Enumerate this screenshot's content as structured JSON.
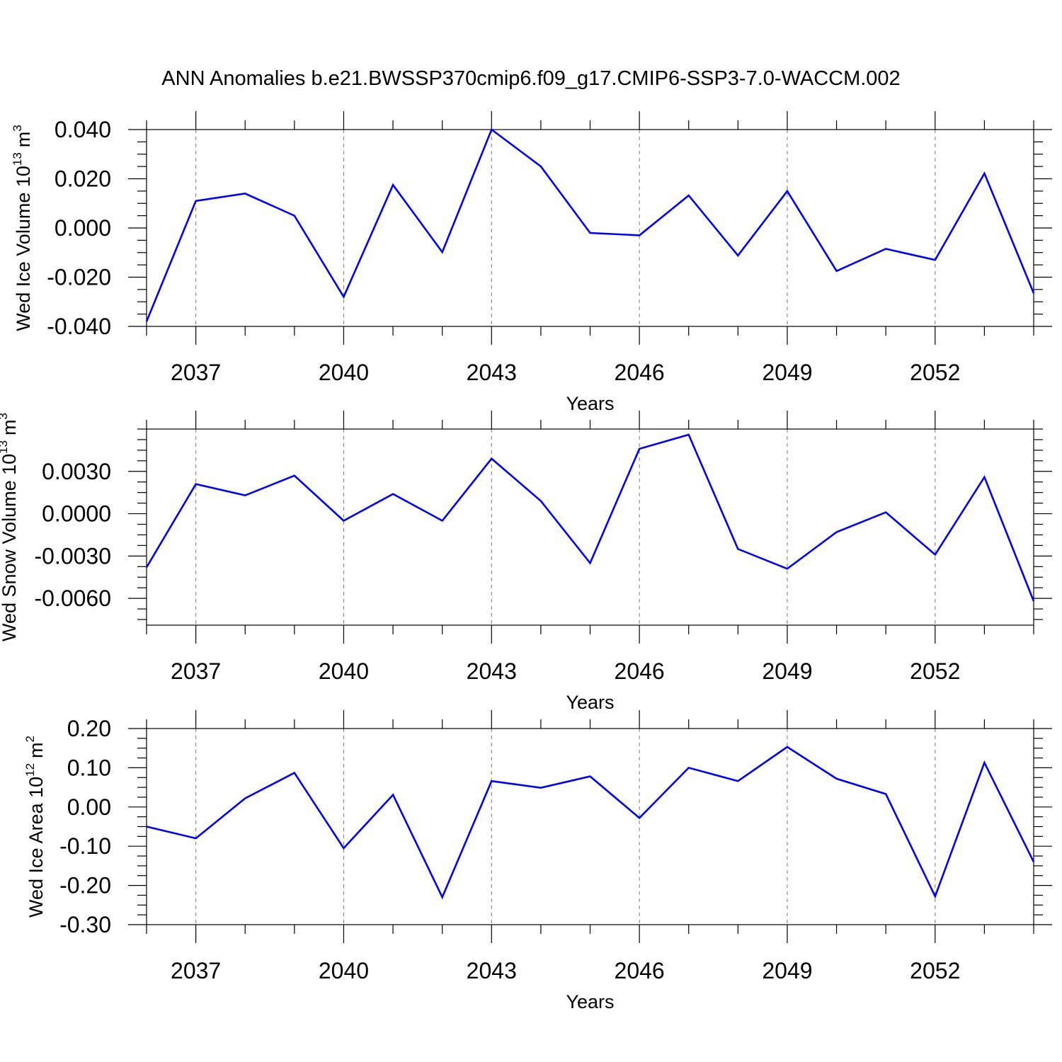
{
  "title": "ANN Anomalies b.e21.BWSSP370cmip6.f09_g17.CMIP6-SSP3-7.0-WACCM.002",
  "colors": {
    "line": "#0000ff",
    "grid": "#777777",
    "axes": "#000000"
  },
  "chart_data": [
    {
      "type": "line",
      "ylabel": "Wed Ice Volume 10",
      "ylabel_exponent": "13",
      "ylabel_unit": "m",
      "ylabel_unit_exponent": "3",
      "xlabel": "Years",
      "xlim": [
        2036,
        2054
      ],
      "ylim": [
        -0.04,
        0.04
      ],
      "yticks": [
        -0.04,
        -0.02,
        0.0,
        0.02,
        0.04
      ],
      "ytick_labels": [
        "-0.040",
        "-0.020",
        "0.000",
        "0.020",
        "0.040"
      ],
      "xticks": [
        2037,
        2040,
        2043,
        2046,
        2049,
        2052
      ],
      "xtick_labels": [
        "2037",
        "2040",
        "2043",
        "2046",
        "2049",
        "2052"
      ],
      "grid": "vertical dashed at major x ticks",
      "x": [
        2036,
        2037,
        2038,
        2039,
        2040,
        2041,
        2042,
        2043,
        2044,
        2045,
        2046,
        2047,
        2048,
        2049,
        2050,
        2051,
        2052,
        2053,
        2054
      ],
      "y": [
        -0.038,
        0.011,
        0.014,
        0.005,
        -0.028,
        0.0175,
        -0.0098,
        0.04,
        0.025,
        -0.002,
        -0.003,
        0.0132,
        -0.0112,
        0.015,
        -0.0175,
        -0.0085,
        -0.013,
        0.0222,
        -0.0265
      ]
    },
    {
      "type": "line",
      "ylabel": "Wed Snow Volume 10",
      "ylabel_exponent": "13",
      "ylabel_unit": "m",
      "ylabel_unit_exponent": "3",
      "xlabel": "Years",
      "xlim": [
        2036,
        2054
      ],
      "ylim": [
        -0.0079,
        0.006
      ],
      "yticks": [
        -0.006,
        -0.003,
        0.0,
        0.003
      ],
      "ytick_labels": [
        "-0.0060",
        "-0.0030",
        "0.0000",
        "0.0030"
      ],
      "xticks": [
        2037,
        2040,
        2043,
        2046,
        2049,
        2052
      ],
      "xtick_labels": [
        "2037",
        "2040",
        "2043",
        "2046",
        "2049",
        "2052"
      ],
      "grid": "vertical dashed at major x ticks",
      "x": [
        2036,
        2037,
        2038,
        2039,
        2040,
        2041,
        2042,
        2043,
        2044,
        2045,
        2046,
        2047,
        2048,
        2049,
        2050,
        2051,
        2052,
        2053,
        2054
      ],
      "y": [
        -0.0038,
        0.0021,
        0.0013,
        0.0027,
        -0.0005,
        0.0014,
        -0.0005,
        0.0039,
        0.0009,
        -0.0035,
        0.0046,
        0.0056,
        -0.0025,
        -0.0039,
        -0.0013,
        0.0001,
        -0.0029,
        0.0026,
        -0.0062
      ]
    },
    {
      "type": "line",
      "ylabel": "Wed Ice Area 10",
      "ylabel_exponent": "12",
      "ylabel_unit": "m",
      "ylabel_unit_exponent": "2",
      "xlabel": "Years",
      "xlim": [
        2036,
        2054
      ],
      "ylim": [
        -0.3,
        0.2
      ],
      "yticks": [
        -0.3,
        -0.2,
        -0.1,
        0.0,
        0.1,
        0.2
      ],
      "ytick_labels": [
        "-0.30",
        "-0.20",
        "-0.10",
        "0.00",
        "0.10",
        "0.20"
      ],
      "xticks": [
        2037,
        2040,
        2043,
        2046,
        2049,
        2052
      ],
      "xtick_labels": [
        "2037",
        "2040",
        "2043",
        "2046",
        "2049",
        "2052"
      ],
      "grid": "vertical dashed at major x ticks",
      "x": [
        2036,
        2037,
        2038,
        2039,
        2040,
        2041,
        2042,
        2043,
        2044,
        2045,
        2046,
        2047,
        2048,
        2049,
        2050,
        2051,
        2052,
        2053,
        2054
      ],
      "y": [
        -0.05,
        -0.08,
        0.022,
        0.087,
        -0.105,
        0.031,
        -0.23,
        0.066,
        0.049,
        0.078,
        -0.028,
        0.1,
        0.066,
        0.153,
        0.072,
        0.033,
        -0.228,
        0.113,
        -0.14
      ]
    }
  ]
}
